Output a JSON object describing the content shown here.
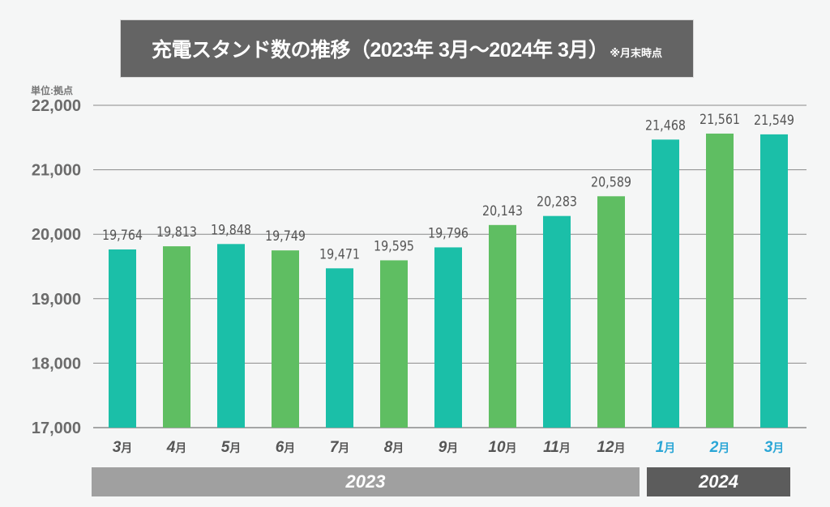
{
  "title": {
    "main": "充電スタンド数の推移（2023年 3月〜2024年 3月）",
    "note": "※月末時点"
  },
  "unit_label": "単位:拠点",
  "colors": {
    "teal": "#1bbfa8",
    "green": "#5fbe62",
    "month_2023": "#555555",
    "month_2024": "#2aa6d6",
    "grid": "#8a8a8a"
  },
  "chart_data": {
    "type": "bar",
    "title": "充電スタンド数の推移（2023年 3月〜2024年 3月）※月末時点",
    "ylabel": "単位:拠点",
    "xlabel": "",
    "ylim": [
      17000,
      22000
    ],
    "yticks": [
      22000,
      21000,
      20000,
      19000,
      18000,
      17000
    ],
    "ytick_labels": [
      "22,000",
      "21,000",
      "20,000",
      "19,000",
      "18,000",
      "17,000"
    ],
    "grid": true,
    "categories": [
      "3月",
      "4月",
      "5月",
      "6月",
      "7月",
      "8月",
      "9月",
      "10月",
      "11月",
      "12月",
      "1月",
      "2月",
      "3月"
    ],
    "category_numbers": [
      "3",
      "4",
      "5",
      "6",
      "7",
      "8",
      "9",
      "10",
      "11",
      "12",
      "1",
      "2",
      "3"
    ],
    "category_suffix": "月",
    "years": [
      "2023",
      "2023",
      "2023",
      "2023",
      "2023",
      "2023",
      "2023",
      "2023",
      "2023",
      "2023",
      "2024",
      "2024",
      "2024"
    ],
    "values": [
      19764,
      19813,
      19848,
      19749,
      19471,
      19595,
      19796,
      20143,
      20283,
      20589,
      21468,
      21561,
      21549
    ],
    "value_labels": [
      "19,764",
      "19,813",
      "19,848",
      "19,749",
      "19,471",
      "19,595",
      "19,796",
      "20,143",
      "20,283",
      "20,589",
      "21,468",
      "21,561",
      "21,549"
    ],
    "bar_colors": [
      "teal",
      "green",
      "teal",
      "green",
      "teal",
      "green",
      "teal",
      "green",
      "teal",
      "green",
      "teal",
      "green",
      "teal"
    ],
    "year_groups": [
      {
        "label": "2023",
        "months": 10
      },
      {
        "label": "2024",
        "months": 3
      }
    ]
  }
}
